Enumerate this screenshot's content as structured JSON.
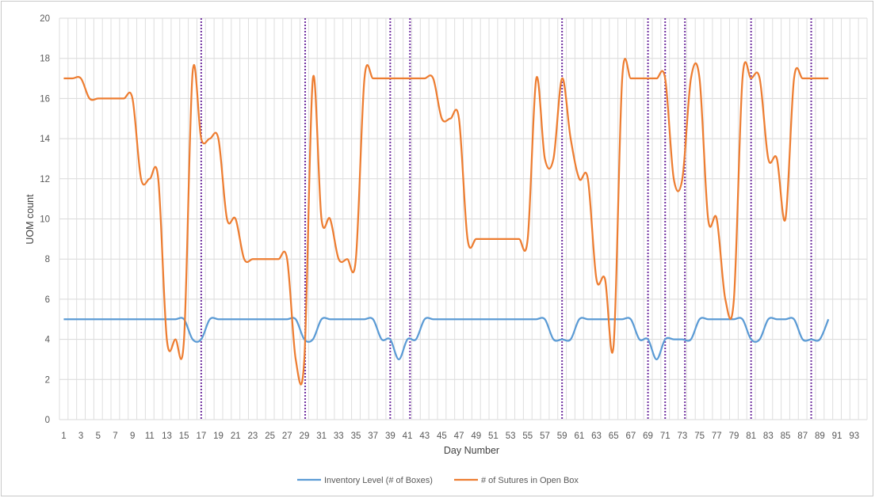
{
  "chart_data": {
    "type": "line",
    "title": "",
    "xlabel": "Day Number",
    "ylabel": "UOM count",
    "x": [
      1,
      2,
      3,
      4,
      5,
      6,
      7,
      8,
      9,
      10,
      11,
      12,
      13,
      14,
      15,
      16,
      17,
      18,
      19,
      20,
      21,
      22,
      23,
      24,
      25,
      26,
      27,
      28,
      29,
      30,
      31,
      32,
      33,
      34,
      35,
      36,
      37,
      38,
      39,
      40,
      41,
      42,
      43,
      44,
      45,
      46,
      47,
      48,
      49,
      50,
      51,
      52,
      53,
      54,
      55,
      56,
      57,
      58,
      59,
      60,
      61,
      62,
      63,
      64,
      65,
      66,
      67,
      68,
      69,
      70,
      71,
      72,
      73,
      74,
      75,
      76,
      77,
      78,
      79,
      80,
      81,
      82,
      83,
      84,
      85,
      86,
      87,
      88,
      89,
      90
    ],
    "xlim": [
      0,
      94
    ],
    "ylim": [
      0,
      20
    ],
    "y_ticks": [
      0,
      2,
      4,
      6,
      8,
      10,
      12,
      14,
      16,
      18,
      20
    ],
    "x_tick_labels": [
      "1",
      "3",
      "5",
      "7",
      "9",
      "11",
      "13",
      "15",
      "17",
      "19",
      "21",
      "23",
      "25",
      "27",
      "29",
      "31",
      "33",
      "35",
      "37",
      "39",
      "41",
      "43",
      "45",
      "47",
      "49",
      "51",
      "53",
      "55",
      "57",
      "59",
      "61",
      "63",
      "65",
      "67",
      "69",
      "71",
      "73",
      "75",
      "77",
      "79",
      "81",
      "83",
      "85",
      "87",
      "89",
      "91",
      "93"
    ],
    "grid": true,
    "legend_position": "bottom",
    "series": [
      {
        "name": "Inventory Level (# of Boxes)",
        "color": "#5b9bd5",
        "values": [
          5,
          5,
          5,
          5,
          5,
          5,
          5,
          5,
          5,
          5,
          5,
          5,
          5,
          5,
          5,
          4,
          4,
          5,
          5,
          5,
          5,
          5,
          5,
          5,
          5,
          5,
          5,
          5,
          4,
          4,
          5,
          5,
          5,
          5,
          5,
          5,
          5,
          4,
          4,
          3,
          4,
          4,
          5,
          5,
          5,
          5,
          5,
          5,
          5,
          5,
          5,
          5,
          5,
          5,
          5,
          5,
          5,
          4,
          4,
          4,
          5,
          5,
          5,
          5,
          5,
          5,
          5,
          4,
          4,
          3,
          4,
          4,
          4,
          4,
          5,
          5,
          5,
          5,
          5,
          5,
          4,
          4,
          5,
          5,
          5,
          5,
          4,
          4,
          4,
          5
        ]
      },
      {
        "name": "# of Sutures in Open Box",
        "color": "#ed7d31",
        "values": [
          17,
          17,
          17,
          16,
          16,
          16,
          16,
          16,
          16,
          12,
          12,
          12,
          4,
          4,
          4,
          17.3,
          14,
          14,
          14,
          10,
          10,
          8,
          8,
          8,
          8,
          8,
          8,
          3,
          3,
          17,
          10,
          10,
          8,
          8,
          8,
          17,
          17,
          17,
          17,
          17,
          17,
          17,
          17,
          17,
          15,
          15,
          15,
          9,
          9,
          9,
          9,
          9,
          9,
          9,
          9,
          17,
          13,
          13,
          17,
          14,
          12,
          12,
          7,
          7,
          3.7,
          17,
          17,
          17,
          17,
          17,
          17,
          12,
          12,
          17,
          17,
          10,
          10,
          6,
          6,
          17,
          17,
          17,
          13,
          13,
          10,
          17,
          17,
          17,
          17,
          17
        ]
      }
    ],
    "reorder_markers_x": [
      17,
      29.1,
      39,
      41.3,
      59,
      69,
      71,
      73.3,
      81,
      88
    ]
  }
}
